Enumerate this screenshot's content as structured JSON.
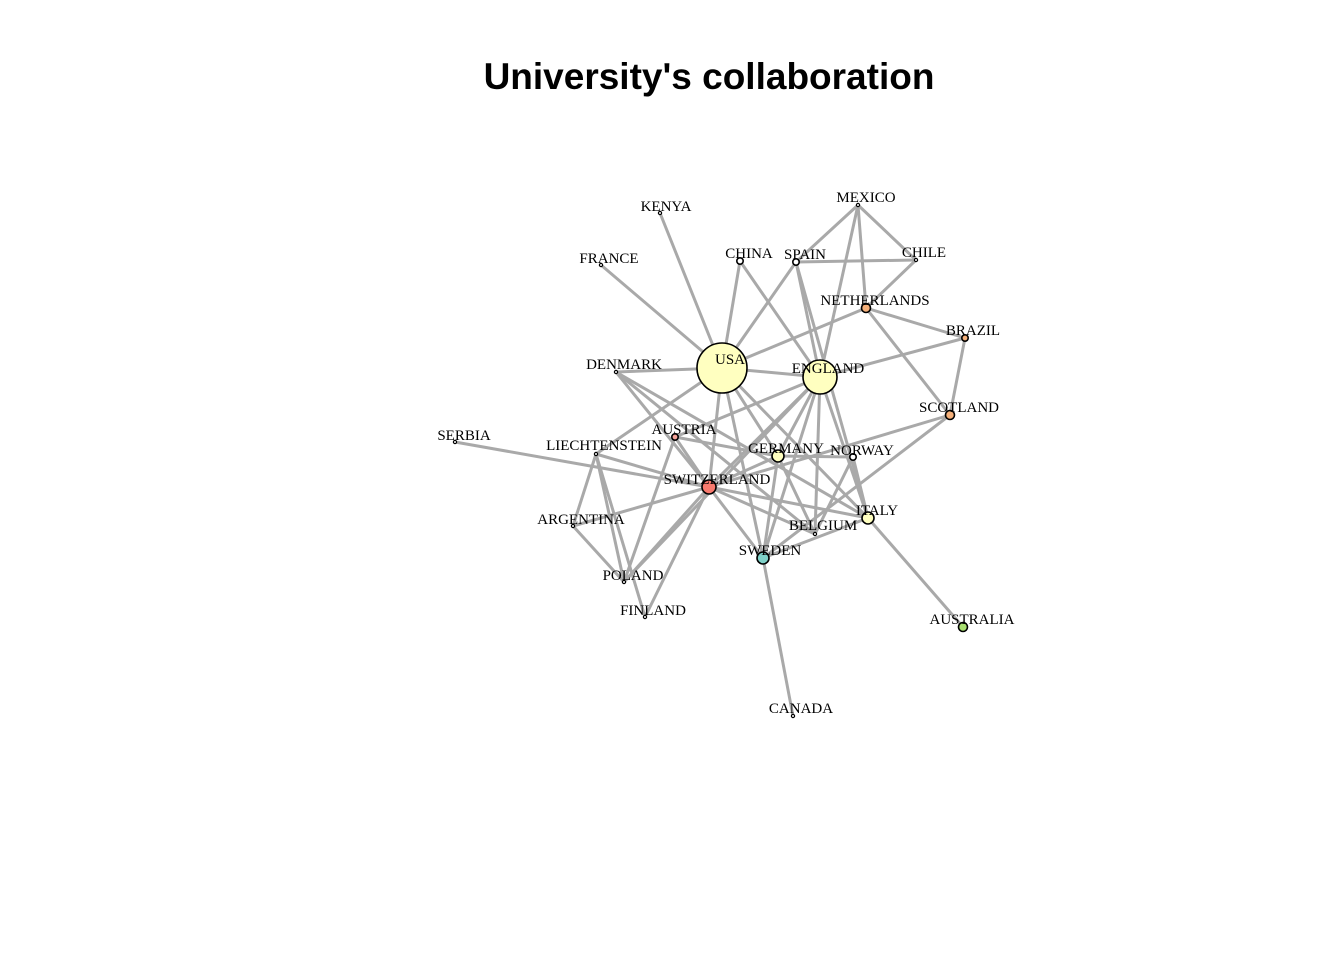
{
  "title": "University's collaboration",
  "colors": {
    "edge": "#a9a9a9",
    "node_stroke": "#000000",
    "yellow": "#ffffc0",
    "red": "#f87a6e",
    "orange": "#f5b07a",
    "teal": "#7fd1c8",
    "green": "#a8df70",
    "salmon": "#f6a49a",
    "white": "#ffffff"
  },
  "nodes": [
    {
      "id": "USA",
      "label": "USA",
      "color": "yellow",
      "size": "large"
    },
    {
      "id": "ENGLAND",
      "label": "ENGLAND",
      "color": "yellow",
      "size": "large-medium"
    },
    {
      "id": "SWITZERLAND",
      "label": "SWITZERLAND",
      "color": "red",
      "size": "medium"
    },
    {
      "id": "ITALY",
      "label": "ITALY",
      "color": "yellow",
      "size": "small-medium"
    },
    {
      "id": "GERMANY",
      "label": "GERMANY",
      "color": "yellow",
      "size": "small-medium"
    },
    {
      "id": "SWEDEN",
      "label": "SWEDEN",
      "color": "teal",
      "size": "small-medium"
    },
    {
      "id": "AUSTRALIA",
      "label": "AUSTRALIA",
      "color": "green",
      "size": "small"
    },
    {
      "id": "NETHERLANDS",
      "label": "NETHERLANDS",
      "color": "orange",
      "size": "small"
    },
    {
      "id": "SCOTLAND",
      "label": "SCOTLAND",
      "color": "orange",
      "size": "small"
    },
    {
      "id": "BRAZIL",
      "label": "BRAZIL",
      "color": "orange",
      "size": "tiny"
    },
    {
      "id": "AUSTRIA",
      "label": "AUSTRIA",
      "color": "salmon",
      "size": "tiny"
    },
    {
      "id": "CHINA",
      "label": "CHINA",
      "color": "white",
      "size": "tiny"
    },
    {
      "id": "SPAIN",
      "label": "SPAIN",
      "color": "white",
      "size": "tiny"
    },
    {
      "id": "NORWAY",
      "label": "NORWAY",
      "color": "white",
      "size": "tiny"
    },
    {
      "id": "CANADA",
      "label": "CANADA",
      "color": "white",
      "size": "dot"
    },
    {
      "id": "KENYA",
      "label": "KENYA",
      "color": "white",
      "size": "dot"
    },
    {
      "id": "FRANCE",
      "label": "FRANCE",
      "color": "white",
      "size": "dot"
    },
    {
      "id": "MEXICO",
      "label": "MEXICO",
      "color": "white",
      "size": "dot"
    },
    {
      "id": "CHILE",
      "label": "CHILE",
      "color": "white",
      "size": "dot"
    },
    {
      "id": "DENMARK",
      "label": "DENMARK",
      "color": "white",
      "size": "dot"
    },
    {
      "id": "SERBIA",
      "label": "SERBIA",
      "color": "white",
      "size": "dot"
    },
    {
      "id": "LIECHTENSTEIN",
      "label": "LIECHTENSTEIN",
      "color": "white",
      "size": "dot"
    },
    {
      "id": "ARGENTINA",
      "label": "ARGENTINA",
      "color": "white",
      "size": "dot"
    },
    {
      "id": "POLAND",
      "label": "POLAND",
      "color": "white",
      "size": "dot"
    },
    {
      "id": "FINLAND",
      "label": "FINLAND",
      "color": "white",
      "size": "dot"
    },
    {
      "id": "BELGIUM",
      "label": "BELGIUM",
      "color": "white",
      "size": "dot"
    }
  ],
  "edges": [
    [
      "USA",
      "KENYA"
    ],
    [
      "USA",
      "FRANCE"
    ],
    [
      "USA",
      "CHINA"
    ],
    [
      "USA",
      "SPAIN"
    ],
    [
      "USA",
      "NETHERLANDS"
    ],
    [
      "USA",
      "ENGLAND"
    ],
    [
      "USA",
      "DENMARK"
    ],
    [
      "USA",
      "SWITZERLAND"
    ],
    [
      "USA",
      "SWEDEN"
    ],
    [
      "USA",
      "ITALY"
    ],
    [
      "USA",
      "GERMANY"
    ],
    [
      "USA",
      "LIECHTENSTEIN"
    ],
    [
      "ENGLAND",
      "CHINA"
    ],
    [
      "ENGLAND",
      "SPAIN"
    ],
    [
      "ENGLAND",
      "MEXICO"
    ],
    [
      "ENGLAND",
      "BRAZIL"
    ],
    [
      "ENGLAND",
      "ITALY"
    ],
    [
      "ENGLAND",
      "GERMANY"
    ],
    [
      "ENGLAND",
      "SWITZERLAND"
    ],
    [
      "ENGLAND",
      "AUSTRIA"
    ],
    [
      "ENGLAND",
      "SWEDEN"
    ],
    [
      "ENGLAND",
      "BELGIUM"
    ],
    [
      "ENGLAND",
      "POLAND"
    ],
    [
      "SPAIN",
      "CHILE"
    ],
    [
      "SPAIN",
      "ITALY"
    ],
    [
      "MEXICO",
      "SPAIN"
    ],
    [
      "MEXICO",
      "CHILE"
    ],
    [
      "MEXICO",
      "NETHERLANDS"
    ],
    [
      "CHILE",
      "NETHERLANDS"
    ],
    [
      "NETHERLANDS",
      "BRAZIL"
    ],
    [
      "NETHERLANDS",
      "SCOTLAND"
    ],
    [
      "BRAZIL",
      "SCOTLAND"
    ],
    [
      "SCOTLAND",
      "SWITZERLAND"
    ],
    [
      "SCOTLAND",
      "SWEDEN"
    ],
    [
      "DENMARK",
      "SWITZERLAND"
    ],
    [
      "DENMARK",
      "ITALY"
    ],
    [
      "DENMARK",
      "BELGIUM"
    ],
    [
      "AUSTRIA",
      "SWITZERLAND"
    ],
    [
      "AUSTRIA",
      "POLAND"
    ],
    [
      "AUSTRIA",
      "GERMANY"
    ],
    [
      "SERBIA",
      "SWITZERLAND"
    ],
    [
      "LIECHTENSTEIN",
      "SWITZERLAND"
    ],
    [
      "LIECHTENSTEIN",
      "ARGENTINA"
    ],
    [
      "LIECHTENSTEIN",
      "POLAND"
    ],
    [
      "ARGENTINA",
      "SWITZERLAND"
    ],
    [
      "ARGENTINA",
      "POLAND"
    ],
    [
      "POLAND",
      "SWITZERLAND"
    ],
    [
      "FINLAND",
      "SWITZERLAND"
    ],
    [
      "FINLAND",
      "LIECHTENSTEIN"
    ],
    [
      "SWITZERLAND",
      "GERMANY"
    ],
    [
      "SWITZERLAND",
      "ITALY"
    ],
    [
      "SWITZERLAND",
      "BELGIUM"
    ],
    [
      "SWITZERLAND",
      "SWEDEN"
    ],
    [
      "GERMANY",
      "BELGIUM"
    ],
    [
      "GERMANY",
      "NORWAY"
    ],
    [
      "GERMANY",
      "SWEDEN"
    ],
    [
      "NORWAY",
      "BELGIUM"
    ],
    [
      "NORWAY",
      "ITALY"
    ],
    [
      "ITALY",
      "AUSTRALIA"
    ],
    [
      "ITALY",
      "SWEDEN"
    ],
    [
      "SWEDEN",
      "CANADA"
    ]
  ]
}
